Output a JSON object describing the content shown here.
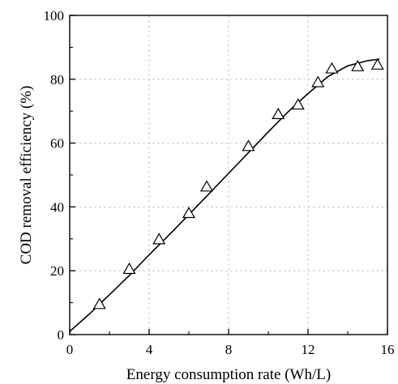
{
  "chart_data": {
    "type": "scatter",
    "title": "",
    "xlabel": "Energy consumption rate (Wh/L)",
    "ylabel": "COD removal efficiency (%)",
    "xlim": [
      0,
      16
    ],
    "ylim": [
      0,
      100
    ],
    "x_ticks": [
      "0",
      "4",
      "8",
      "12",
      "16"
    ],
    "y_ticks": [
      "0",
      "20",
      "40",
      "60",
      "80",
      "100"
    ],
    "grid": true,
    "legend": "none",
    "marker": "open-triangle",
    "series": [
      {
        "points": [
          {
            "x": 1.5,
            "y": 9.5
          },
          {
            "x": 3.0,
            "y": 20.5
          },
          {
            "x": 4.5,
            "y": 29.8
          },
          {
            "x": 6.0,
            "y": 38.0
          },
          {
            "x": 6.9,
            "y": 46.3
          },
          {
            "x": 9.0,
            "y": 59.0
          },
          {
            "x": 10.5,
            "y": 69.0
          },
          {
            "x": 11.5,
            "y": 72.0
          },
          {
            "x": 12.5,
            "y": 79.0
          },
          {
            "x": 13.2,
            "y": 83.3
          },
          {
            "x": 14.5,
            "y": 84.0
          },
          {
            "x": 15.5,
            "y": 84.5
          }
        ]
      }
    ],
    "fit_curve": [
      {
        "x": 0.0,
        "y": 1.0
      },
      {
        "x": 1.0,
        "y": 6.5
      },
      {
        "x": 2.0,
        "y": 12.5
      },
      {
        "x": 3.0,
        "y": 18.5
      },
      {
        "x": 4.0,
        "y": 25.0
      },
      {
        "x": 5.0,
        "y": 31.2
      },
      {
        "x": 6.0,
        "y": 37.6
      },
      {
        "x": 7.0,
        "y": 44.0
      },
      {
        "x": 8.0,
        "y": 50.5
      },
      {
        "x": 9.0,
        "y": 57.0
      },
      {
        "x": 10.0,
        "y": 63.5
      },
      {
        "x": 11.0,
        "y": 69.8
      },
      {
        "x": 12.0,
        "y": 75.5
      },
      {
        "x": 13.0,
        "y": 80.8
      },
      {
        "x": 14.0,
        "y": 84.2
      },
      {
        "x": 15.0,
        "y": 85.8
      },
      {
        "x": 15.6,
        "y": 86.3
      }
    ],
    "colors": {
      "axis": "#000000",
      "grid": "#c8c8c8",
      "curve": "#000000",
      "marker": "#000000"
    }
  }
}
